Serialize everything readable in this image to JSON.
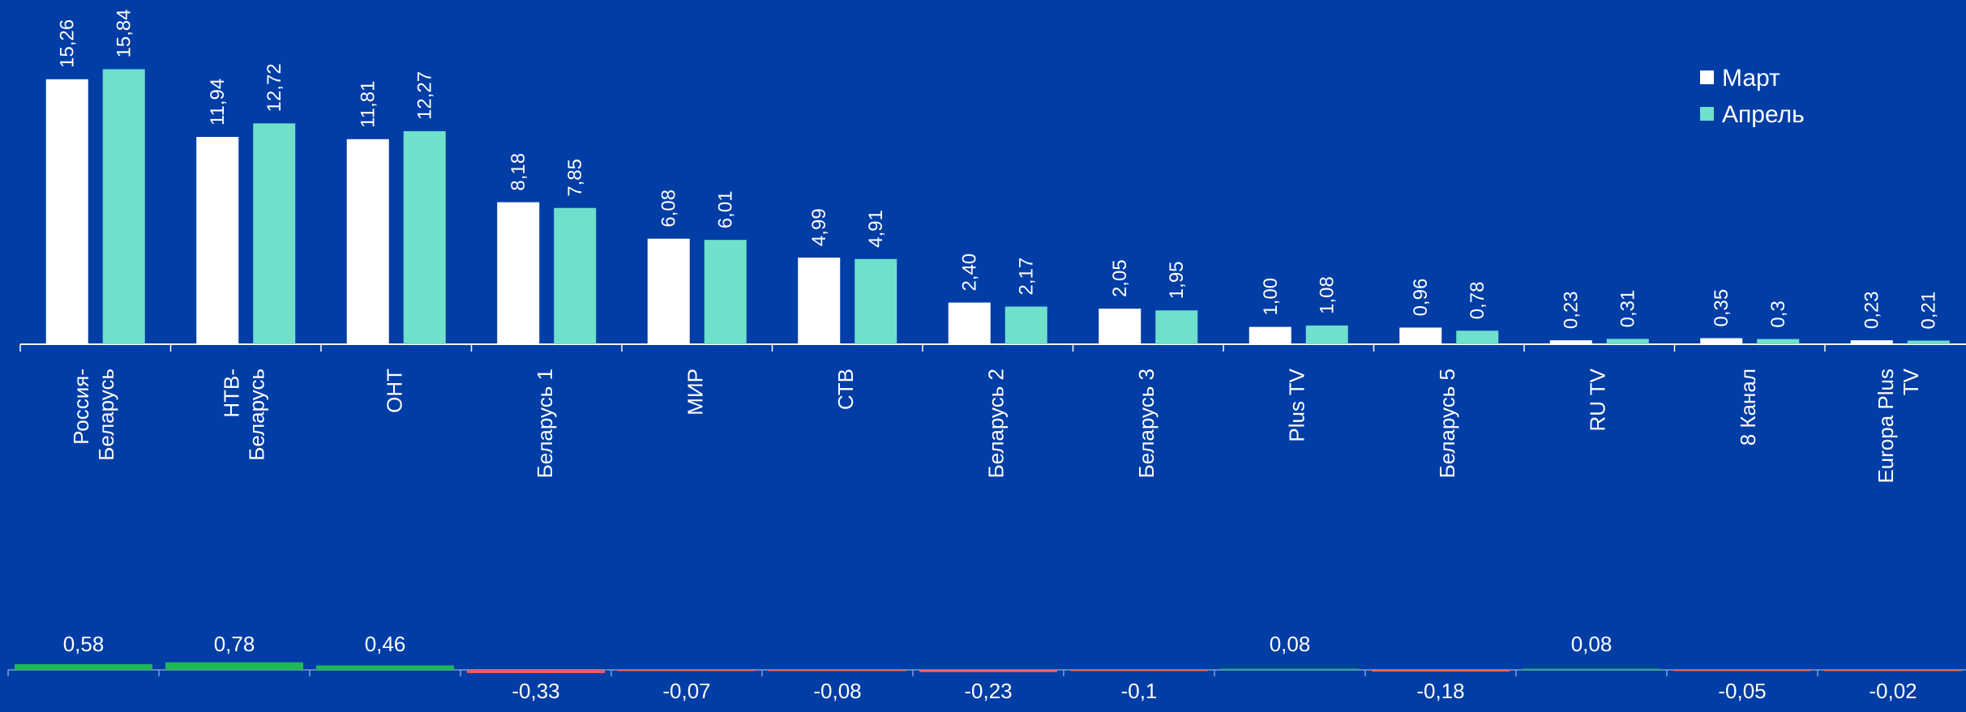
{
  "chart_data": [
    {
      "type": "bar",
      "categories": [
        "Россия-Беларусь",
        "НТВ-Беларусь",
        "ОНТ",
        "Беларусь 1",
        "МИР",
        "СТВ",
        "Беларусь 2",
        "Беларусь 3",
        "Plus TV",
        "Беларусь 5",
        "RU TV",
        "8 Канал",
        "Europa Plus TV"
      ],
      "category_lines": [
        [
          "Россия-",
          "Беларусь"
        ],
        [
          "НТВ-",
          "Беларусь"
        ],
        [
          "ОНТ"
        ],
        [
          "Беларусь 1"
        ],
        [
          "МИР"
        ],
        [
          "СТВ"
        ],
        [
          "Беларусь 2"
        ],
        [
          "Беларусь 3"
        ],
        [
          "Plus TV"
        ],
        [
          "Беларусь 5"
        ],
        [
          "RU TV"
        ],
        [
          "8 Канал"
        ],
        [
          "Europa Plus",
          "TV"
        ]
      ],
      "series": [
        {
          "name": "Март",
          "color": "#FFFFFF",
          "values": [
            15.26,
            11.94,
            11.81,
            8.18,
            6.08,
            4.99,
            2.4,
            2.05,
            1.0,
            0.96,
            0.23,
            0.35,
            0.23
          ],
          "labels": [
            "15,26",
            "11,94",
            "11,81",
            "8,18",
            "6,08",
            "4,99",
            "2,40",
            "2,05",
            "1,00",
            "0,96",
            "0,23",
            "0,35",
            "0,23"
          ]
        },
        {
          "name": "Апрель",
          "color": "#6FE0CC",
          "values": [
            15.84,
            12.72,
            12.27,
            7.85,
            6.01,
            4.91,
            2.17,
            1.95,
            1.08,
            0.78,
            0.31,
            0.3,
            0.21
          ],
          "labels": [
            "15,84",
            "12,72",
            "12,27",
            "7,85",
            "6,01",
            "4,91",
            "2,17",
            "1,95",
            "1,08",
            "0,78",
            "0,31",
            "0,3",
            "0,21"
          ]
        }
      ],
      "ylim": [
        0,
        17
      ],
      "legend": "top-right",
      "grid": false,
      "axis_color": "#FFFFFF"
    },
    {
      "type": "bar",
      "categories": [
        "Россия-Беларусь",
        "НТВ-Беларусь",
        "ОНТ",
        "Беларусь 1",
        "МИР",
        "СТВ",
        "Беларусь 2",
        "Беларусь 3",
        "Plus TV",
        "Беларусь 5",
        "RU TV",
        "8 Канал",
        "Europa Plus TV"
      ],
      "values": [
        0.58,
        0.78,
        0.46,
        -0.33,
        -0.07,
        -0.08,
        -0.23,
        -0.1,
        0.08,
        -0.18,
        0.08,
        -0.05,
        -0.02
      ],
      "labels": [
        "0,58",
        "0,78",
        "0,46",
        "-0,33",
        "-0,07",
        "-0,08",
        "-0,23",
        "-0,1",
        "0,08",
        "-0,18",
        "0,08",
        "-0,05",
        "-0,02"
      ],
      "positive_color": "#1DB954",
      "negative_color": "#E9645B",
      "ylim": [
        -1,
        1
      ],
      "axis_color": "#7F9FD2"
    }
  ]
}
